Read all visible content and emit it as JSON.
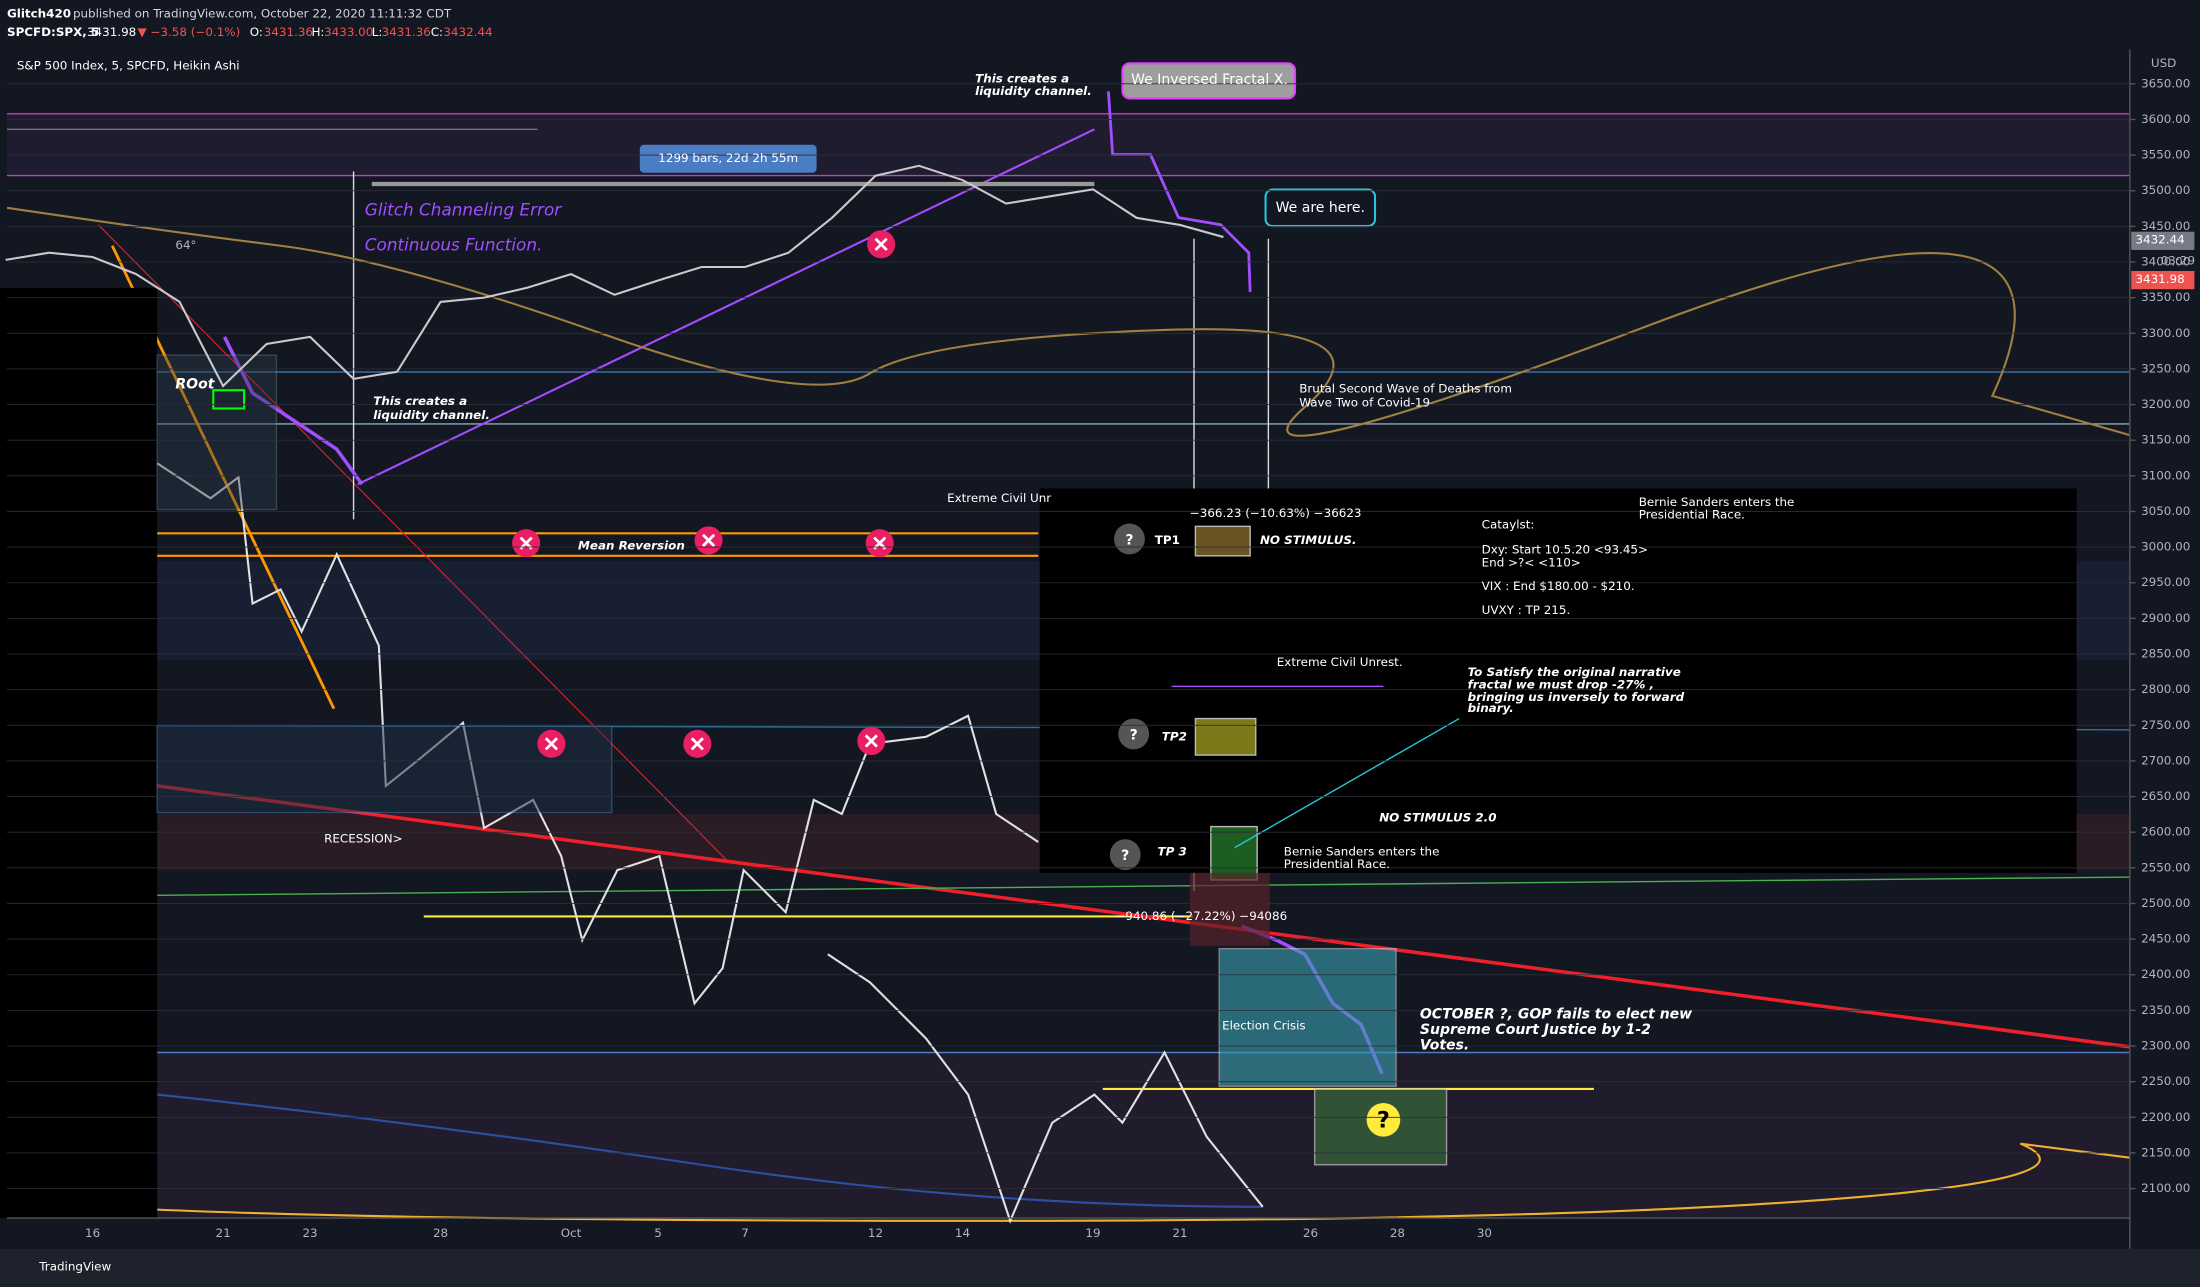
{
  "header": {
    "user": "Glitch420",
    "published": "published on TradingView.com, October 22, 2020 11:11:32 CDT",
    "symbol": "SPCFD:SPX, 5",
    "last": "3431.98",
    "change": "▼ −3.58 (−0.1%)",
    "ohlc": [
      {
        "label": "O:",
        "value": "3431.36"
      },
      {
        "label": "H:",
        "value": "3433.00"
      },
      {
        "label": "L:",
        "value": "3431.36"
      },
      {
        "label": "C:",
        "value": "3432.44"
      }
    ]
  },
  "chart_data": {
    "type": "line",
    "title": "S&P 500 Index, 5, SPCFD, Heikin Ashi",
    "currency": "USD",
    "categories": [
      null,
      null,
      "16",
      null,
      null,
      "21",
      null,
      "23",
      null,
      null,
      "28",
      null,
      null,
      "Oct",
      null,
      "5",
      null,
      "7",
      null,
      null,
      "12",
      null,
      "14",
      null,
      null,
      "19",
      null,
      "21",
      null,
      null,
      "26",
      null,
      "28",
      null,
      "30",
      null,
      null,
      null,
      null,
      null,
      null,
      null,
      null,
      null,
      null,
      null,
      null,
      null,
      null
    ],
    "series": [
      {
        "name": "S&P 500 Index",
        "color": "#c9c9c9",
        "values": [
          3403,
          3413,
          3407,
          3383,
          3344,
          3226,
          3285,
          3295,
          3236,
          3246,
          3344,
          3350,
          3364,
          3383,
          3354,
          3374,
          3393,
          3393,
          3413,
          3462,
          3521,
          3535,
          3515,
          3482,
          3492,
          3502,
          3462,
          3452,
          3435,
          null,
          null,
          null,
          null,
          null,
          null,
          null,
          null,
          null,
          null,
          null,
          null,
          null,
          null,
          null,
          null,
          null,
          null,
          null,
          null
        ]
      }
    ],
    "ylim": [
      2060,
      3700
    ],
    "yticks": [
      {
        "value": 2100,
        "label": "2100.00"
      },
      {
        "value": 2150,
        "label": "2150.00"
      },
      {
        "value": 2200,
        "label": "2200.00"
      },
      {
        "value": 2250,
        "label": "2250.00"
      },
      {
        "value": 2300,
        "label": "2300.00"
      },
      {
        "value": 2350,
        "label": "2350.00"
      },
      {
        "value": 2400,
        "label": "2400.00"
      },
      {
        "value": 2450,
        "label": "2450.00"
      },
      {
        "value": 2500,
        "label": "2500.00"
      },
      {
        "value": 2550,
        "label": "2550.00"
      },
      {
        "value": 2600,
        "label": "2600.00"
      },
      {
        "value": 2650,
        "label": "2650.00"
      },
      {
        "value": 2700,
        "label": "2700.00"
      },
      {
        "value": 2750,
        "label": "2750.00"
      },
      {
        "value": 2800,
        "label": "2800.00"
      },
      {
        "value": 2850,
        "label": "2850.00"
      },
      {
        "value": 2900,
        "label": "2900.00"
      },
      {
        "value": 2950,
        "label": "2950.00"
      },
      {
        "value": 3000,
        "label": "3000.00"
      },
      {
        "value": 3050,
        "label": "3050.00"
      },
      {
        "value": 3100,
        "label": "3100.00"
      },
      {
        "value": 3150,
        "label": "3150.00"
      },
      {
        "value": 3200,
        "label": "3200.00"
      },
      {
        "value": 3250,
        "label": "3250.00"
      },
      {
        "value": 3300,
        "label": "3300.00"
      },
      {
        "value": 3350,
        "label": "3350.00"
      },
      {
        "value": 3400,
        "label": "3400.00"
      },
      {
        "value": 3450,
        "label": "3450.00"
      },
      {
        "value": 3500,
        "label": "3500.00"
      },
      {
        "value": 3550,
        "label": "3550.00"
      },
      {
        "value": 3600,
        "label": "3600.00"
      },
      {
        "value": 3650,
        "label": "3650.00"
      }
    ],
    "grid": true
  },
  "price_tags": {
    "close": "3432.44",
    "timer": "03:29",
    "last": "3431.98"
  },
  "notes": {
    "bars": "1299 bars, 22d 2h 55m",
    "fractal_bubble": "We Inversed Fractal X.",
    "here_bubble": "We are here.",
    "liquidity_top": [
      "This creates a",
      "liquidity channel."
    ],
    "glitch": "Glitch Channeling Error",
    "continuous": "Continuous Function.",
    "root": "ROot",
    "fib": "64°",
    "liquidity_left": [
      "This creates a",
      "liquidity channel."
    ],
    "wave": [
      "Brutal Second Wave of Deaths from",
      "Wave Two of Covid-19"
    ],
    "civil_left": "Extreme Civil Unr",
    "mean_reversion": "Mean Reversion",
    "recession": "RECESSION>",
    "election": "Election Crisis",
    "october": [
      "OCTOBER ?, GOP fails to elect new",
      "Supreme Court Justice by 1-2",
      "Votes."
    ],
    "measure_top": "−366.23 (−10.63%) −36623",
    "measure_bottom": "−940.86 (−27.22%) −94086",
    "tp1": "TP1",
    "no_stim": "NO STIMULUS.",
    "tp2": "TP2",
    "tp3": "TP 3",
    "bernie_top": [
      "Bernie Sanders enters the",
      "Presidential Race."
    ],
    "catalyst": [
      "Cataylst:",
      "Dxy: Start 10.5.20 <93.45>",
      "End >?< <110>",
      "VIX : End $180.00 - $210.",
      "UVXY : TP 215."
    ],
    "civil_box": "Extreme Civil Unrest.",
    "satisfy": [
      "To Satisfy the original narrative",
      "fractal we must drop -27% ,",
      "bringing us inversely to forward",
      "binary."
    ],
    "no_stim2": "NO STIMULUS 2.0",
    "bernie_bottom": [
      "Bernie Sanders enters the",
      "Presidential Race."
    ],
    "question": "?"
  },
  "footer": "TradingView"
}
